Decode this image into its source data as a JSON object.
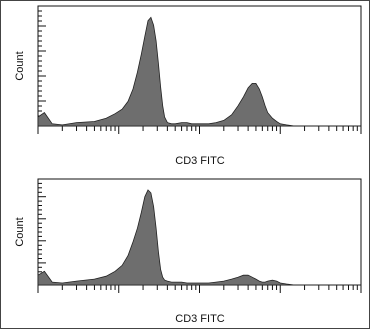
{
  "chart_data": [
    {
      "type": "area",
      "xlabel": "CD3 FITC",
      "ylabel": "Count",
      "x_scale": "log",
      "xlim": [
        1,
        10000
      ],
      "ylim": [
        0,
        100
      ],
      "grid": false,
      "fill_color": "#6e6e6e",
      "x": [
        1,
        1.2,
        1.5,
        2,
        3,
        5,
        7,
        9,
        11,
        13,
        15,
        17,
        19,
        21,
        23,
        25,
        27,
        29,
        31,
        33,
        35,
        37,
        40,
        45,
        50,
        60,
        70,
        80,
        100,
        130,
        160,
        200,
        250,
        300,
        350,
        400,
        450,
        500,
        550,
        600,
        650,
        700,
        800,
        900,
        1000,
        1200,
        1500,
        2000,
        3000,
        5000,
        10000
      ],
      "values": [
        8,
        12,
        2,
        1,
        3,
        4,
        7,
        11,
        15,
        22,
        33,
        48,
        64,
        80,
        94,
        97,
        90,
        76,
        56,
        35,
        18,
        8,
        3,
        2,
        2,
        3,
        3,
        2,
        2,
        2,
        3,
        5,
        10,
        18,
        26,
        34,
        38,
        38,
        33,
        26,
        18,
        12,
        7,
        4,
        2,
        1,
        0,
        0,
        0,
        0,
        0
      ]
    },
    {
      "type": "area",
      "xlabel": "CD3 FITC",
      "ylabel": "Count",
      "x_scale": "log",
      "xlim": [
        1,
        10000
      ],
      "ylim": [
        0,
        100
      ],
      "grid": false,
      "fill_color": "#6e6e6e",
      "x": [
        1,
        1.2,
        1.5,
        2,
        3,
        5,
        7,
        9,
        11,
        13,
        15,
        17,
        19,
        21,
        23,
        25,
        27,
        29,
        31,
        33,
        35,
        37,
        40,
        45,
        50,
        60,
        70,
        80,
        100,
        130,
        160,
        200,
        250,
        300,
        350,
        400,
        450,
        500,
        550,
        600,
        650,
        700,
        800,
        900,
        1000,
        1200,
        1500,
        2000,
        3000,
        5000,
        10000
      ],
      "values": [
        10,
        14,
        3,
        2,
        4,
        6,
        9,
        14,
        20,
        30,
        44,
        58,
        74,
        90,
        97,
        94,
        80,
        58,
        34,
        16,
        8,
        5,
        4,
        3,
        3,
        3,
        2,
        2,
        2,
        2,
        3,
        4,
        6,
        8,
        10,
        10,
        8,
        6,
        4,
        3,
        3,
        4,
        5,
        4,
        2,
        1,
        0,
        0,
        0,
        0,
        0
      ]
    }
  ]
}
